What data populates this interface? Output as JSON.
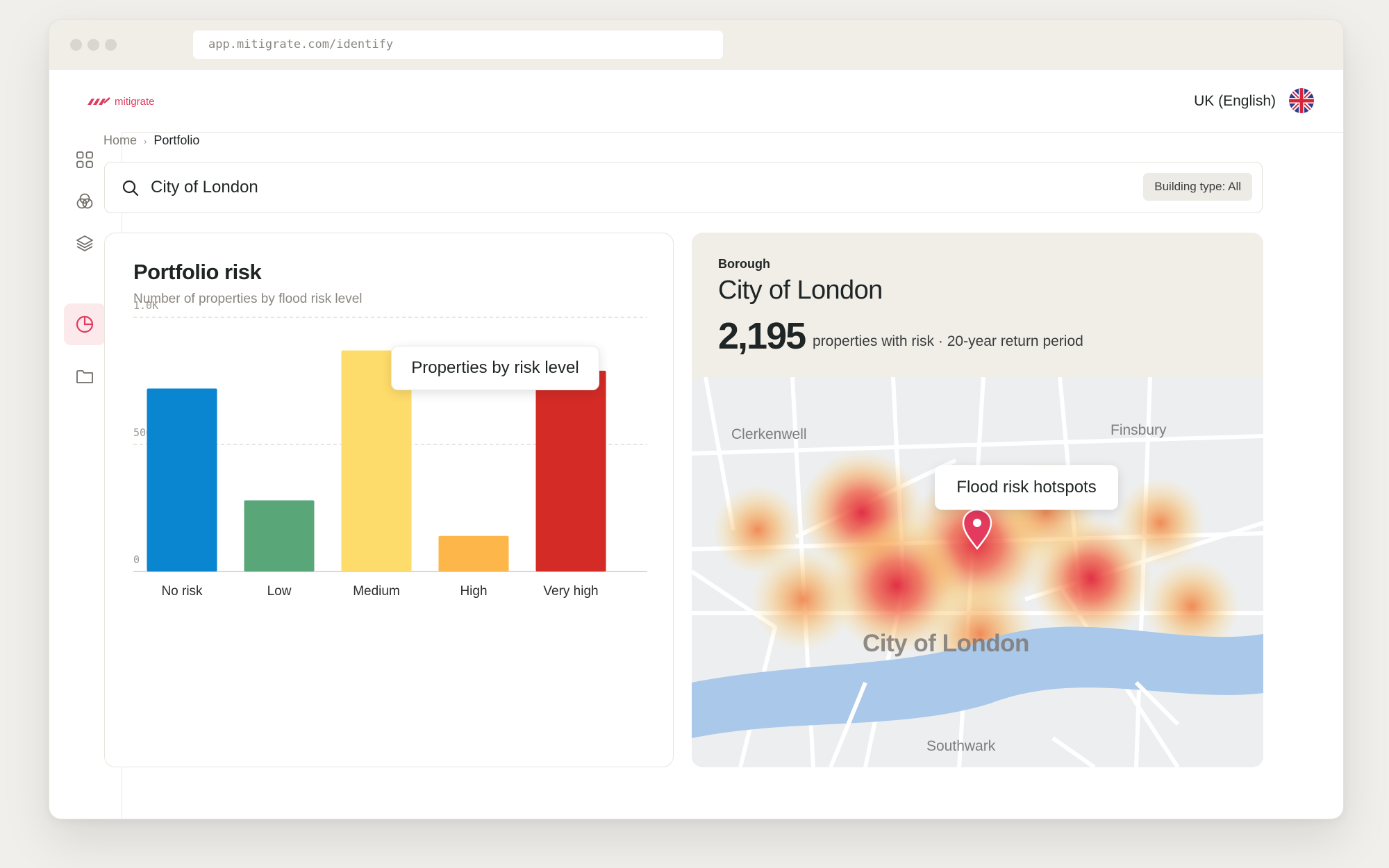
{
  "browser": {
    "url": "app.mitigrate.com/identify"
  },
  "header": {
    "logo_text": "mitigrate",
    "language": "UK (English)"
  },
  "sidebar": {
    "items": [
      {
        "icon": "grid-icon"
      },
      {
        "icon": "circles-icon"
      },
      {
        "icon": "layers-icon"
      },
      {
        "icon": "pie-chart-icon",
        "active": true
      },
      {
        "icon": "folder-icon"
      }
    ]
  },
  "breadcrumb": {
    "home": "Home",
    "current": "Portfolio"
  },
  "search": {
    "value": "City of London",
    "filter": "Building type: All"
  },
  "chart_card": {
    "title": "Portfolio risk",
    "subtitle": "Number of properties by flood risk level",
    "tooltip": "Properties by risk level"
  },
  "chart_data": {
    "type": "bar",
    "categories": [
      "No risk",
      "Low",
      "Medium",
      "High",
      "Very high"
    ],
    "values": [
      720,
      280,
      870,
      140,
      790
    ],
    "colors": [
      "#0a85cf",
      "#59a778",
      "#fedc6b",
      "#fdb649",
      "#d42b26"
    ],
    "ytick_labels": [
      "1.0K",
      "500",
      "0"
    ],
    "yticks": [
      1000,
      500,
      0
    ],
    "ylim": [
      0,
      1000
    ],
    "highlight_index": 4,
    "grid": true
  },
  "borough_panel": {
    "label": "Borough",
    "name": "City of London",
    "stat_value": "2,195",
    "stat_desc": "properties with risk · 20-year return period"
  },
  "map": {
    "labels": {
      "north_west": "Clerkenwell",
      "north_east": "Finsbury",
      "south": "Southwark",
      "center": "City of London"
    },
    "tooltip": "Flood risk hotspots",
    "colors": {
      "river": "#a9c8ea",
      "pin": "#e33a5d",
      "land": "#edeef0"
    }
  }
}
